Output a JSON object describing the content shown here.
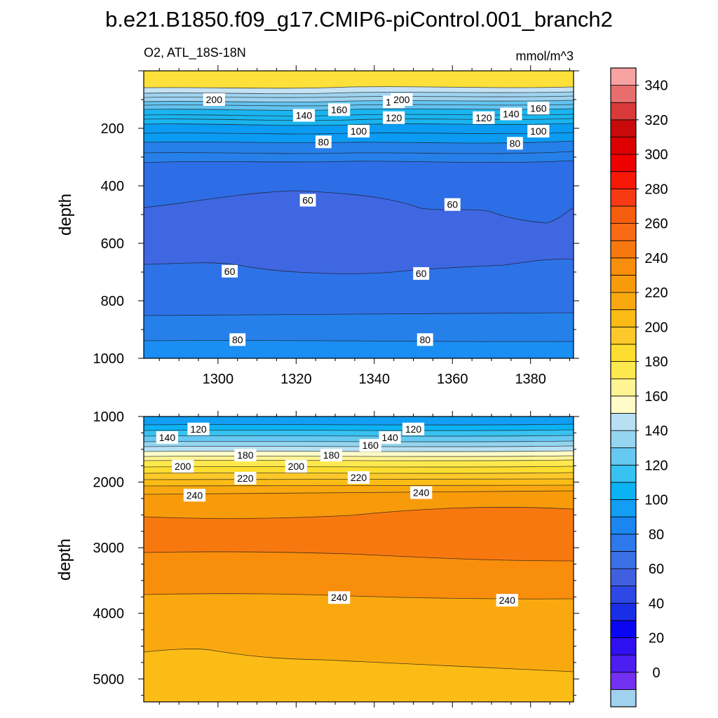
{
  "figure": {
    "title": "b.e21.B1850.f09_g17.CMIP6-piControl.001_branch2",
    "variable_label": "O2, ATL_18S-18N",
    "units": "mmol/m^3"
  },
  "chart_data": [
    {
      "type": "heatmap",
      "name": "upper",
      "title": "O2, ATL_18S-18N",
      "units": "mmol/m^3",
      "xlabel": "",
      "ylabel": "depth",
      "x": [
        1281,
        1391
      ],
      "xticks": [
        1300,
        1320,
        1340,
        1360,
        1380
      ],
      "xtick_labels": [
        "1300",
        "1320",
        "1340",
        "1360",
        "1380"
      ],
      "ylim": [
        1000,
        0
      ],
      "yticks": [
        200,
        400,
        600,
        800,
        1000
      ],
      "ytick_labels": [
        "200",
        "400",
        "600",
        "800",
        "1000"
      ],
      "bands": [
        {
          "from": 40,
          "to": 80,
          "color": "#fde03a"
        },
        {
          "from": 80,
          "to": 100,
          "color": "#c4e2f3"
        },
        {
          "from": 100,
          "to": 125,
          "color": "#9fd3f0"
        },
        {
          "from": 125,
          "to": 150,
          "color": "#63c3f0"
        },
        {
          "from": 150,
          "to": 180,
          "color": "#1ab5f0"
        },
        {
          "from": 180,
          "to": 235,
          "color": "#0b9bf2"
        },
        {
          "from": 235,
          "to": 305,
          "color": "#2680ea"
        },
        {
          "from": 305,
          "to": 480,
          "color": "#2d6ee6"
        },
        {
          "from": 480,
          "to": 675,
          "color": "#3f67e2"
        },
        {
          "from": 675,
          "to": 845,
          "color": "#2e72e8"
        },
        {
          "from": 845,
          "to": 940,
          "color": "#2680ea"
        },
        {
          "from": 940,
          "to": 1000,
          "color": "#1a8ef2"
        }
      ],
      "contour_labels": [
        {
          "x": 1299,
          "y": 100,
          "text": "200"
        },
        {
          "x": 1345,
          "y": 108,
          "text": "180"
        },
        {
          "x": 1347,
          "y": 100,
          "text": "200"
        },
        {
          "x": 1331,
          "y": 135,
          "text": "160"
        },
        {
          "x": 1382,
          "y": 130,
          "text": "160"
        },
        {
          "x": 1322,
          "y": 155,
          "text": "140"
        },
        {
          "x": 1375,
          "y": 150,
          "text": "140"
        },
        {
          "x": 1345,
          "y": 163,
          "text": "120"
        },
        {
          "x": 1368,
          "y": 163,
          "text": "120"
        },
        {
          "x": 1336,
          "y": 210,
          "text": "100"
        },
        {
          "x": 1382,
          "y": 210,
          "text": "100"
        },
        {
          "x": 1327,
          "y": 247,
          "text": "80"
        },
        {
          "x": 1376,
          "y": 252,
          "text": "80"
        },
        {
          "x": 1323,
          "y": 450,
          "text": "60"
        },
        {
          "x": 1360,
          "y": 465,
          "text": "60"
        },
        {
          "x": 1303,
          "y": 697,
          "text": "60"
        },
        {
          "x": 1352,
          "y": 705,
          "text": "60"
        },
        {
          "x": 1305,
          "y": 935,
          "text": "80"
        },
        {
          "x": 1353,
          "y": 935,
          "text": "80"
        }
      ]
    },
    {
      "type": "heatmap",
      "name": "lower",
      "title": "",
      "xlabel": "",
      "ylabel": "depth",
      "x": [
        1281,
        1391
      ],
      "xticks": [
        1300,
        1320,
        1340,
        1360,
        1380
      ],
      "ylim": [
        5350,
        1000
      ],
      "yticks": [
        1000,
        2000,
        3000,
        4000,
        5000
      ],
      "ytick_labels": [
        "1000",
        "2000",
        "3000",
        "4000",
        "5000"
      ],
      "contour_labels": [
        {
          "x": 1295,
          "y": 1190,
          "text": "120"
        },
        {
          "x": 1350,
          "y": 1190,
          "text": "120"
        },
        {
          "x": 1287,
          "y": 1320,
          "text": "140"
        },
        {
          "x": 1344,
          "y": 1320,
          "text": "140"
        },
        {
          "x": 1339,
          "y": 1440,
          "text": "160"
        },
        {
          "x": 1307,
          "y": 1590,
          "text": "180"
        },
        {
          "x": 1329,
          "y": 1590,
          "text": "180"
        },
        {
          "x": 1291,
          "y": 1760,
          "text": "200"
        },
        {
          "x": 1320,
          "y": 1760,
          "text": "200"
        },
        {
          "x": 1307,
          "y": 1940,
          "text": "220"
        },
        {
          "x": 1336,
          "y": 1930,
          "text": "220"
        },
        {
          "x": 1294,
          "y": 2200,
          "text": "240"
        },
        {
          "x": 1352,
          "y": 2160,
          "text": "240"
        },
        {
          "x": 1331,
          "y": 3760,
          "text": "240"
        },
        {
          "x": 1374,
          "y": 3800,
          "text": "240"
        }
      ]
    }
  ],
  "colorbar": {
    "colors": [
      "#a0d1ef",
      "#7430f0",
      "#4d1ef2",
      "#2e10f0",
      "#0a06f2",
      "#1a2ee6",
      "#2d48e4",
      "#4160e0",
      "#3b70e6",
      "#2d78ea",
      "#1b86ef",
      "#119ef4",
      "#0cb3f4",
      "#37c2f2",
      "#66c9f2",
      "#94d5f0",
      "#b8e0f3",
      "#fffcc8",
      "#fff494",
      "#fde94d",
      "#fdde30",
      "#fcc82a",
      "#fbbc16",
      "#f9a90f",
      "#f89b0b",
      "#f98e0c",
      "#f87810",
      "#f86a14",
      "#f55d0e",
      "#f83a14",
      "#f81808",
      "#ee0000",
      "#dc0000",
      "#c80a0a",
      "#d83a3a",
      "#e86e6e",
      "#f7a3a3"
    ],
    "labels": [
      "0",
      "20",
      "40",
      "60",
      "80",
      "100",
      "120",
      "140",
      "160",
      "180",
      "200",
      "220",
      "240",
      "260",
      "280",
      "300",
      "320",
      "340"
    ]
  }
}
